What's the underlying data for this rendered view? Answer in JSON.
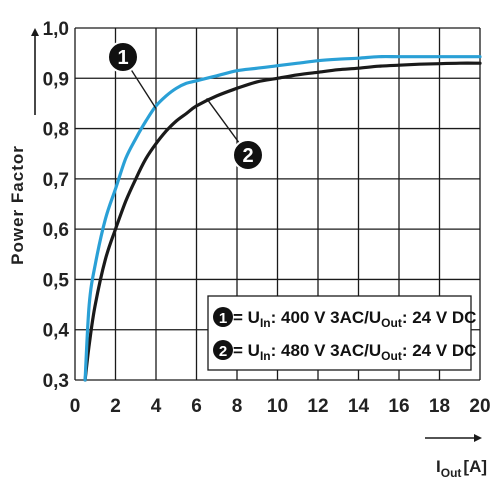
{
  "chart_data": {
    "type": "line",
    "xlabel": {
      "main": "I",
      "sub": "Out",
      "unit": "[A]"
    },
    "ylabel": "Power Factor",
    "xlim": [
      0,
      20
    ],
    "ylim": [
      0.3,
      1.0
    ],
    "x_ticks": [
      "0",
      "2",
      "4",
      "6",
      "8",
      "10",
      "12",
      "14",
      "16",
      "18",
      "20"
    ],
    "y_ticks": [
      "0,3",
      "0,4",
      "0,5",
      "0,6",
      "0,7",
      "0,8",
      "0,9",
      "1,0"
    ],
    "grid": true,
    "series": [
      {
        "name": "1",
        "color": "#2aa0d6",
        "x": [
          0.5,
          0.7,
          1,
          1.5,
          2,
          2.5,
          3,
          3.5,
          4,
          4.5,
          5,
          5.5,
          6,
          7,
          8,
          9,
          10,
          11,
          12,
          13,
          14,
          15,
          16,
          17,
          18,
          19,
          20
        ],
        "y": [
          0.3,
          0.45,
          0.53,
          0.62,
          0.68,
          0.74,
          0.78,
          0.815,
          0.845,
          0.865,
          0.88,
          0.89,
          0.895,
          0.905,
          0.915,
          0.92,
          0.925,
          0.93,
          0.935,
          0.938,
          0.94,
          0.943,
          0.943,
          0.943,
          0.943,
          0.943,
          0.943
        ]
      },
      {
        "name": "2",
        "color": "#1a1a1a",
        "x": [
          0.5,
          0.7,
          1,
          1.5,
          2,
          2.5,
          3,
          3.5,
          4,
          4.5,
          5,
          5.5,
          6,
          7,
          8,
          9,
          10,
          11,
          12,
          13,
          14,
          15,
          16,
          17,
          18,
          19,
          20
        ],
        "y": [
          0.3,
          0.37,
          0.45,
          0.54,
          0.6,
          0.655,
          0.7,
          0.74,
          0.77,
          0.795,
          0.815,
          0.83,
          0.845,
          0.865,
          0.88,
          0.893,
          0.9,
          0.907,
          0.912,
          0.917,
          0.92,
          0.924,
          0.926,
          0.928,
          0.929,
          0.93,
          0.93
        ]
      }
    ],
    "callouts": [
      {
        "label": "1",
        "x_anchor": 4,
        "y_anchor": 0.84
      },
      {
        "label": "2",
        "x_anchor": 6.5,
        "y_anchor": 0.86
      }
    ],
    "legend": {
      "placement": "bottom-right",
      "entries": [
        {
          "num": "1",
          "eq": " = U",
          "sub1": "In",
          "mid": ": 400 V 3AC/U",
          "sub2": "Out",
          "tail": ": 24 V DC"
        },
        {
          "num": "2",
          "eq": " = U",
          "sub1": "In",
          "mid": ": 480 V 3AC/U",
          "sub2": "Out",
          "tail": ": 24 V DC"
        }
      ]
    }
  }
}
